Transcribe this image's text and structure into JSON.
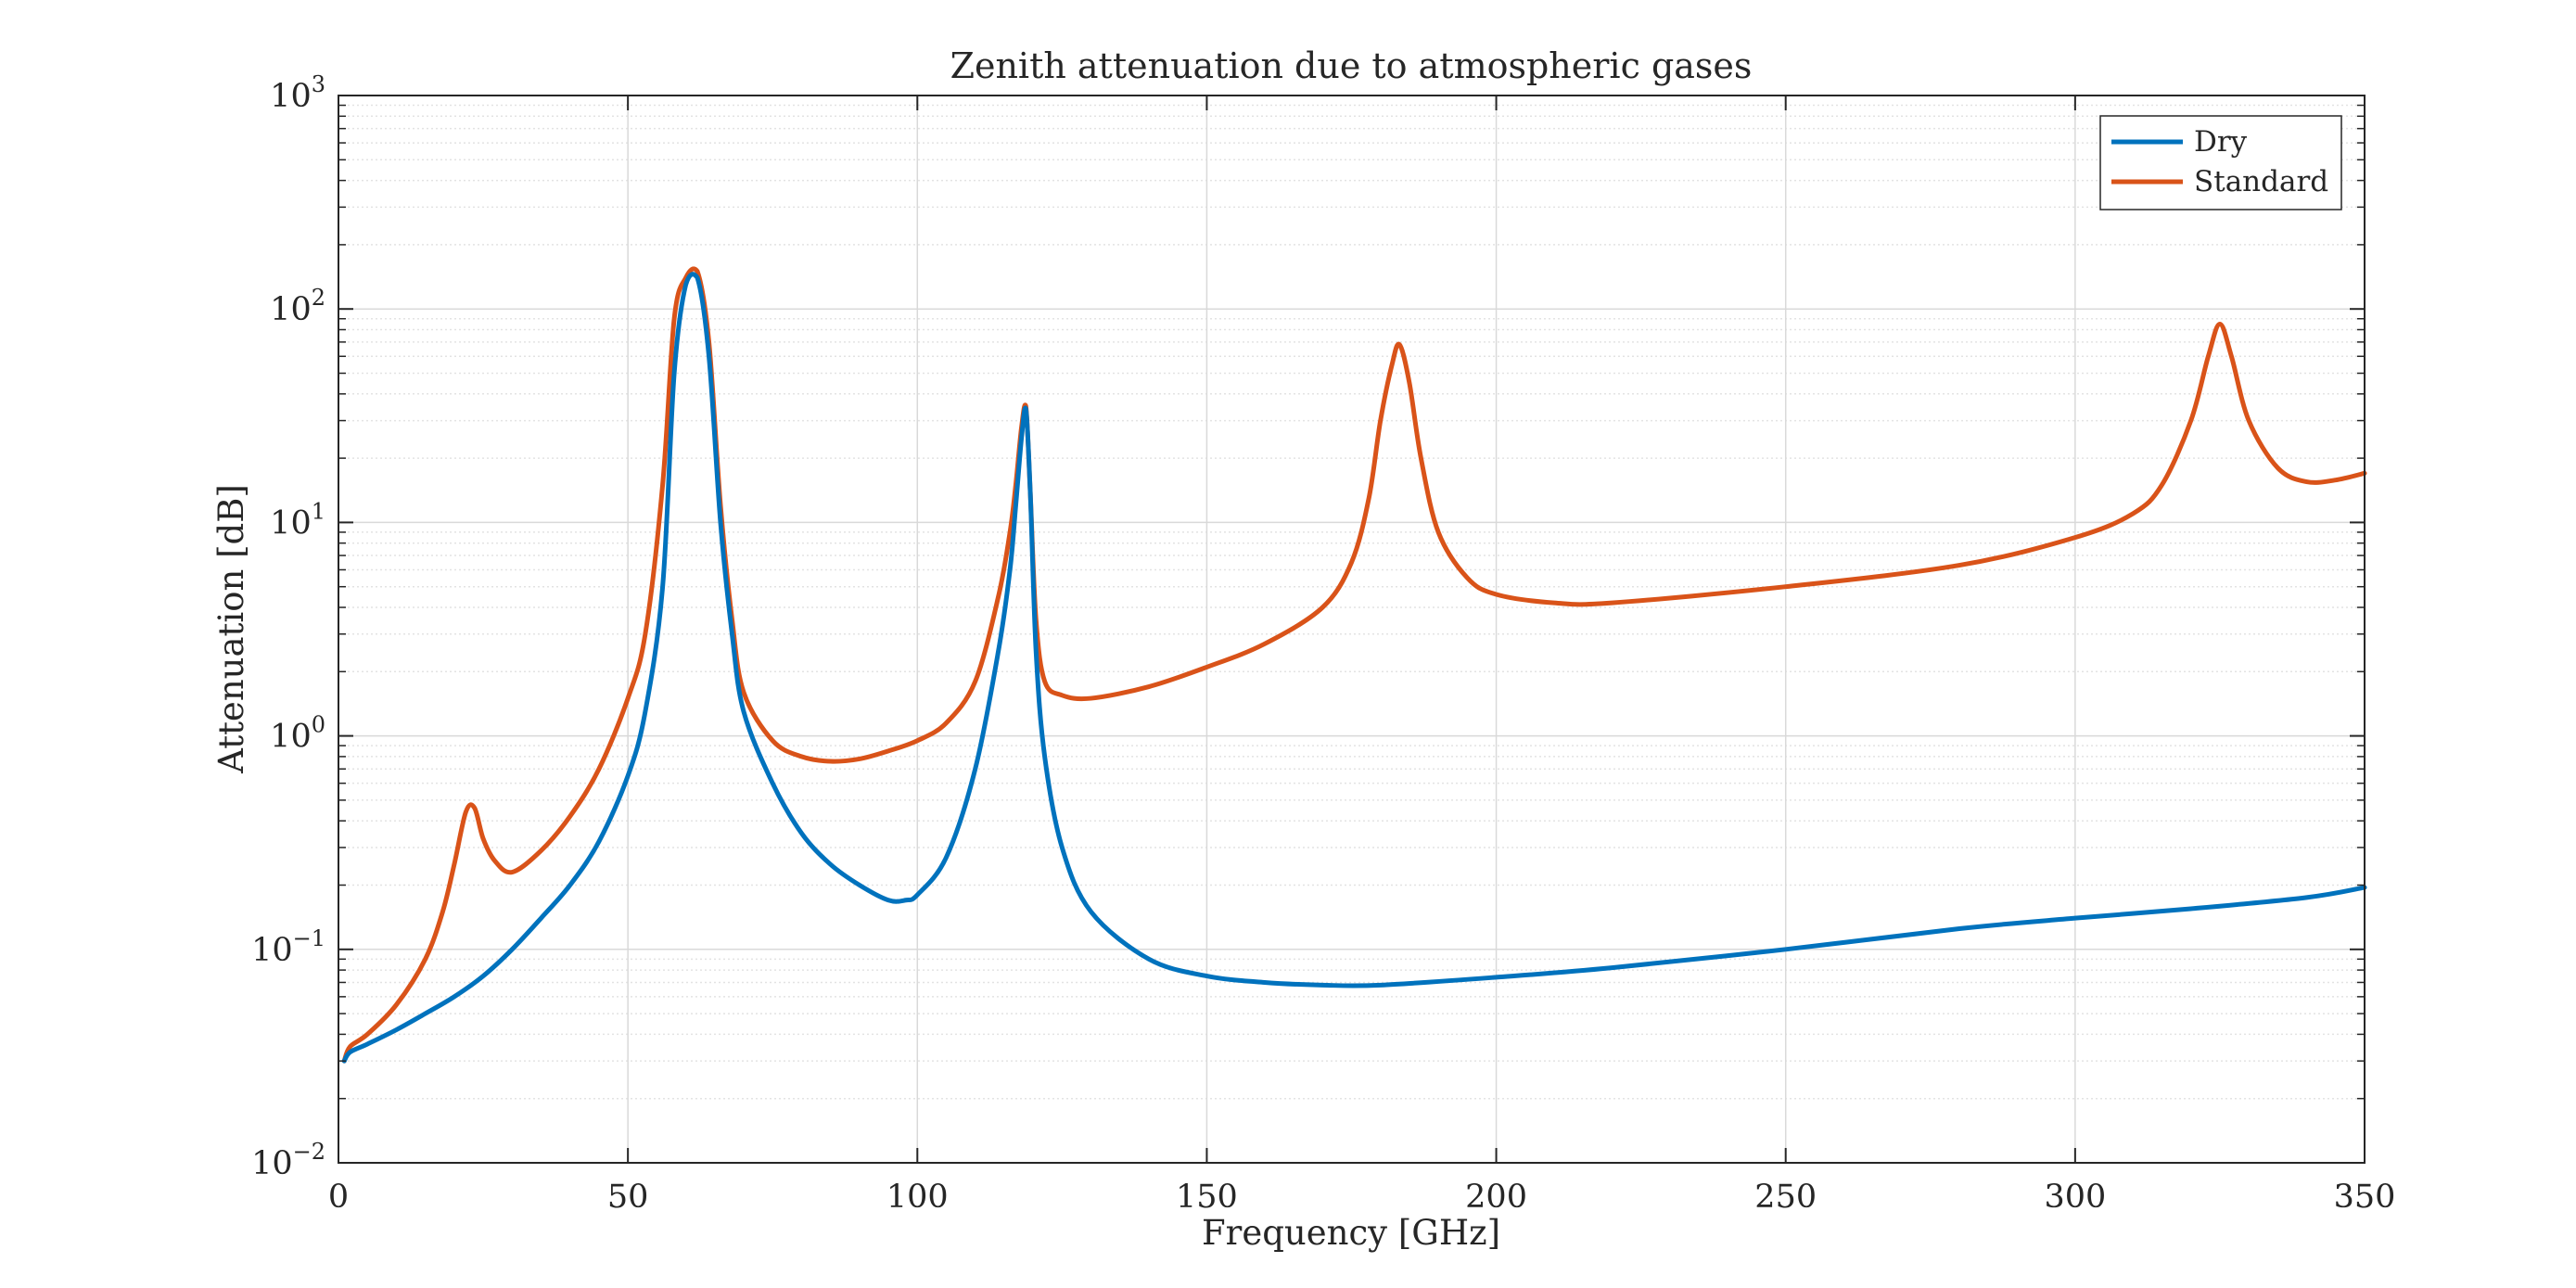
{
  "chart_data": {
    "type": "line",
    "title": "Zenith attenuation due to atmospheric gases",
    "xlabel": "Frequency [GHz]",
    "ylabel": "Attenuation [dB]",
    "xlim": [
      0,
      350
    ],
    "ylim": [
      0.01,
      1000
    ],
    "yscale": "log",
    "grid": true,
    "legend_position": "top-right",
    "xticks": [
      0,
      50,
      100,
      150,
      200,
      250,
      300,
      350
    ],
    "xtick_labels": [
      "0",
      "50",
      "100",
      "150",
      "200",
      "250",
      "300",
      "350"
    ],
    "yticks": [
      {
        "value": 0.01,
        "base": "10",
        "exp": "−2"
      },
      {
        "value": 0.1,
        "base": "10",
        "exp": "−1"
      },
      {
        "value": 1,
        "base": "10",
        "exp": "0"
      },
      {
        "value": 10,
        "base": "10",
        "exp": "1"
      },
      {
        "value": 100,
        "base": "10",
        "exp": "2"
      },
      {
        "value": 1000,
        "base": "10",
        "exp": "3"
      }
    ],
    "series": [
      {
        "name": "Dry",
        "color": "#0072BD",
        "x": [
          1,
          2,
          5,
          10,
          15,
          20,
          25,
          30,
          35,
          40,
          45,
          50,
          53,
          56,
          58,
          60,
          62,
          64,
          66,
          68,
          70,
          75,
          80,
          85,
          90,
          95,
          98,
          100,
          105,
          110,
          114,
          116,
          117,
          118,
          118.75,
          119.5,
          120.5,
          122,
          125,
          130,
          140,
          150,
          160,
          170,
          180,
          200,
          220,
          250,
          280,
          300,
          320,
          340,
          350
        ],
        "y": [
          0.03,
          0.033,
          0.036,
          0.042,
          0.05,
          0.06,
          0.075,
          0.1,
          0.14,
          0.2,
          0.32,
          0.65,
          1.3,
          5,
          50,
          130,
          140,
          60,
          10,
          3,
          1.3,
          0.6,
          0.35,
          0.25,
          0.2,
          0.17,
          0.17,
          0.18,
          0.27,
          0.7,
          2.5,
          6,
          12,
          25,
          34,
          14,
          2.5,
          0.8,
          0.3,
          0.15,
          0.09,
          0.075,
          0.07,
          0.068,
          0.068,
          0.074,
          0.082,
          0.1,
          0.125,
          0.14,
          0.155,
          0.175,
          0.195
        ]
      },
      {
        "name": "Standard",
        "color": "#D95319",
        "x": [
          1,
          2,
          5,
          10,
          15,
          18,
          20,
          22,
          23.5,
          25,
          27,
          30,
          35,
          40,
          45,
          50,
          53,
          56,
          58,
          60,
          62,
          64,
          66,
          68,
          70,
          75,
          80,
          85,
          90,
          95,
          100,
          105,
          110,
          114,
          116,
          117,
          118,
          118.75,
          119.5,
          120.5,
          122,
          125,
          130,
          140,
          150,
          160,
          170,
          175,
          178,
          180,
          182,
          183.3,
          185,
          187,
          190,
          195,
          200,
          210,
          220,
          250,
          280,
          300,
          310,
          315,
          320,
          323,
          325,
          327,
          330,
          335,
          340,
          345,
          350
        ],
        "y": [
          0.03,
          0.035,
          0.04,
          0.055,
          0.09,
          0.15,
          0.25,
          0.44,
          0.46,
          0.33,
          0.26,
          0.23,
          0.29,
          0.42,
          0.7,
          1.5,
          3,
          15,
          90,
          140,
          150,
          70,
          12,
          3.5,
          1.6,
          0.95,
          0.8,
          0.76,
          0.78,
          0.85,
          0.95,
          1.15,
          1.8,
          4.5,
          9,
          15,
          28,
          35,
          14,
          3.5,
          1.8,
          1.55,
          1.5,
          1.7,
          2.1,
          2.7,
          4,
          6.5,
          13,
          30,
          55,
          68,
          45,
          20,
          9,
          5.5,
          4.6,
          4.2,
          4.2,
          5,
          6.3,
          8.5,
          11,
          15,
          30,
          60,
          85,
          60,
          30,
          18,
          15.5,
          15.8,
          17
        ]
      }
    ]
  }
}
